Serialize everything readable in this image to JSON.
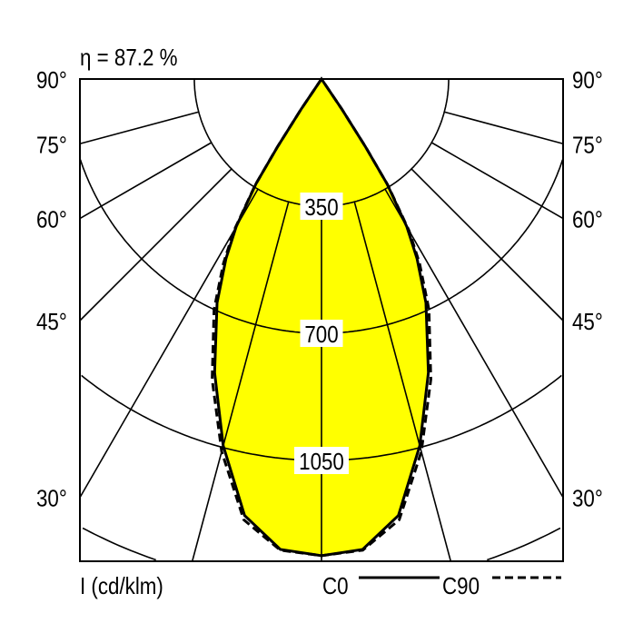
{
  "chart_data": {
    "type": "polar",
    "title": "η = 87.2 %",
    "unit_label": "I (cd/klm)",
    "ring_values": [
      350,
      700,
      1050
    ],
    "angle_labels": [
      "90°",
      "75°",
      "60°",
      "45°",
      "30°"
    ],
    "radial_angles": [
      0,
      15,
      30,
      45,
      60,
      75,
      90
    ],
    "grid": true,
    "fill_color": "#ffff00",
    "legend_placement": "bottom-right",
    "series": [
      {
        "name": "C0",
        "style": "solid",
        "angles": [
          0,
          5,
          10,
          15,
          20,
          25,
          28,
          30,
          32,
          33,
          34,
          35
        ],
        "values": [
          1312,
          1300,
          1220,
          1045,
          860,
          680,
          560,
          470,
          340,
          220,
          100,
          0
        ]
      },
      {
        "name": "C90",
        "style": "dashed",
        "angles": [
          0,
          5,
          10,
          15,
          20,
          25,
          28,
          30,
          32,
          33,
          34,
          35
        ],
        "values": [
          1312,
          1302,
          1232,
          1062,
          880,
          700,
          575,
          482,
          345,
          225,
          100,
          0
        ]
      }
    ]
  }
}
